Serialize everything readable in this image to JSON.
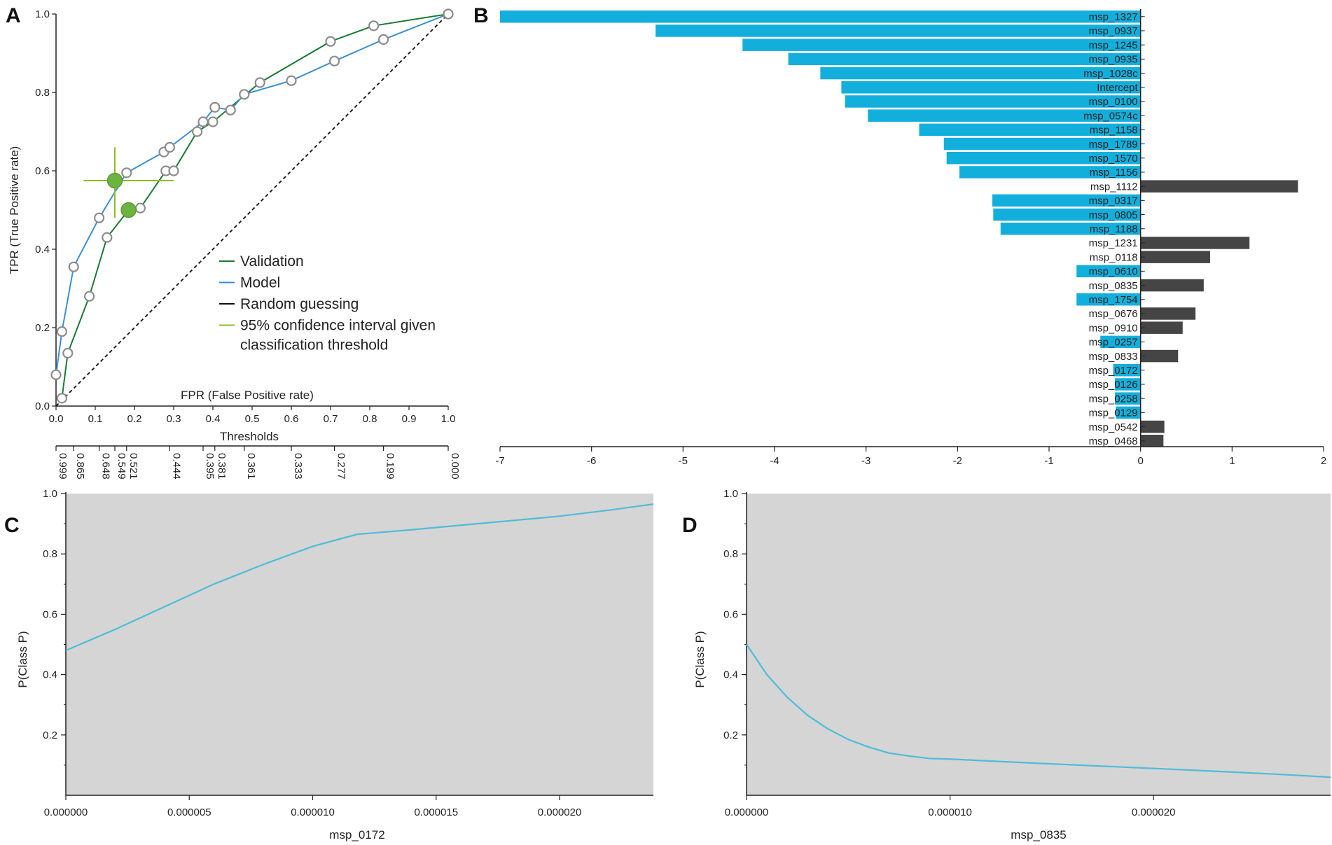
{
  "panels": {
    "A": {
      "letter": "A",
      "chart_data": {
        "type": "line",
        "xlabel": "FPR (False Positive rate)",
        "ylabel": "TPR (True Positive rate)",
        "xlim": [
          0,
          1
        ],
        "ylim": [
          0,
          1
        ],
        "xticks": [
          "0.0",
          "0.1",
          "0.2",
          "0.3",
          "0.4",
          "0.5",
          "0.6",
          "0.7",
          "0.8",
          "0.9",
          "1.0"
        ],
        "yticks": [
          "0.0",
          "0.2",
          "0.4",
          "0.6",
          "0.8",
          "1.0"
        ],
        "series": [
          {
            "name": "Validation",
            "color": "#1a7a35",
            "points": [
              [
                0.015,
                0.02
              ],
              [
                0.03,
                0.135
              ],
              [
                0.085,
                0.28
              ],
              [
                0.13,
                0.43
              ],
              [
                0.185,
                0.5
              ],
              [
                0.215,
                0.505
              ],
              [
                0.28,
                0.6
              ],
              [
                0.3,
                0.6
              ],
              [
                0.36,
                0.7
              ],
              [
                0.4,
                0.725
              ],
              [
                0.52,
                0.825
              ],
              [
                0.7,
                0.93
              ],
              [
                0.81,
                0.97
              ],
              [
                1.0,
                1.0
              ]
            ]
          },
          {
            "name": "Model",
            "color": "#3a8fd4",
            "points": [
              [
                0.0,
                0.08
              ],
              [
                0.015,
                0.19
              ],
              [
                0.045,
                0.355
              ],
              [
                0.11,
                0.48
              ],
              [
                0.18,
                0.595
              ],
              [
                0.275,
                0.648
              ],
              [
                0.29,
                0.66
              ],
              [
                0.375,
                0.725
              ],
              [
                0.405,
                0.762
              ],
              [
                0.445,
                0.755
              ],
              [
                0.48,
                0.795
              ],
              [
                0.6,
                0.83
              ],
              [
                0.71,
                0.88
              ],
              [
                0.835,
                0.935
              ],
              [
                1.0,
                1.0
              ]
            ]
          },
          {
            "name": "Random guessing",
            "color": "#111111",
            "points": [
              [
                0,
                0
              ],
              [
                1,
                1
              ]
            ]
          }
        ],
        "ci_points": [
          {
            "series": "Model",
            "fpr": 0.15,
            "tpr": 0.575,
            "fpr_ci": [
              0.07,
              0.3
            ],
            "tpr_ci": [
              0.48,
              0.66
            ]
          },
          {
            "series": "Validation",
            "fpr": 0.185,
            "tpr": 0.5
          }
        ],
        "legend": [
          {
            "label": "Validation",
            "color": "#1a7a35"
          },
          {
            "label": "Model",
            "color": "#3a8fd4"
          },
          {
            "label": "Random guessing",
            "color": "#111111"
          },
          {
            "label": "95% confidence interval given",
            "label2": "classification threshold",
            "color": "#8cbf26"
          }
        ],
        "thresholds_label": "Thresholds",
        "thresholds": [
          {
            "fpr": 0.0,
            "label": "0.999"
          },
          {
            "fpr": 0.045,
            "label": "0.865"
          },
          {
            "fpr": 0.11,
            "label": "0.648"
          },
          {
            "fpr": 0.15,
            "label": "0.549"
          },
          {
            "fpr": 0.18,
            "label": "0.521"
          },
          {
            "fpr": 0.29,
            "label": "0.444"
          },
          {
            "fpr": 0.375,
            "label": "0.395"
          },
          {
            "fpr": 0.405,
            "label": "0.381"
          },
          {
            "fpr": 0.48,
            "label": "0.361"
          },
          {
            "fpr": 0.6,
            "label": "0.333"
          },
          {
            "fpr": 0.71,
            "label": "0.277"
          },
          {
            "fpr": 0.835,
            "label": "0.199"
          },
          {
            "fpr": 1.0,
            "label": "0.000"
          }
        ]
      }
    },
    "B": {
      "letter": "B",
      "chart_data": {
        "type": "bar",
        "orientation": "horizontal",
        "xlim": [
          -7,
          2
        ],
        "xticks": [
          "-7",
          "-6",
          "-5",
          "-4",
          "-3",
          "-2",
          "-1",
          "0",
          "1",
          "2"
        ],
        "colors": {
          "negative": "#13afdc",
          "positive": "#454545"
        },
        "categories": [
          "msp_1327",
          "msp_0937",
          "msp_1245",
          "msp_0935",
          "msp_1028c",
          "Intercept",
          "msp_0100",
          "msp_0574c",
          "msp_1158",
          "msp_1789",
          "msp_1570",
          "msp_1156",
          "msp_1112",
          "msp_0317",
          "msp_0805",
          "msp_1188",
          "msp_1231",
          "msp_0118",
          "msp_0610",
          "msp_0835",
          "msp_1754",
          "msp_0676",
          "msp_0910",
          "msp_0257",
          "msp_0833",
          "msp_0172",
          "msp_0126",
          "msp_0258",
          "msp_0129",
          "msp_0542",
          "msp_0468"
        ],
        "values": [
          -7.0,
          -5.3,
          -4.35,
          -3.85,
          -3.5,
          -3.27,
          -3.23,
          -2.98,
          -2.42,
          -2.15,
          -2.12,
          -1.98,
          1.72,
          -1.62,
          -1.61,
          -1.53,
          1.19,
          0.76,
          -0.7,
          0.69,
          -0.7,
          0.6,
          0.46,
          -0.44,
          0.41,
          -0.3,
          -0.28,
          -0.28,
          -0.27,
          0.26,
          0.25
        ]
      }
    },
    "C": {
      "letter": "C",
      "chart_data": {
        "type": "line",
        "xlabel": "msp_0172",
        "ylabel": "P(Class P)",
        "xlim": [
          0,
          2.38e-05
        ],
        "ylim": [
          0,
          1.0
        ],
        "xticks": [
          "0.000000",
          "0.000005",
          "0.000010",
          "0.000015",
          "0.000020"
        ],
        "yticks": [
          "0.2",
          "0.4",
          "0.6",
          "0.8",
          "1.0"
        ],
        "color": "#4fbcd8",
        "x": [
          0,
          2e-06,
          4e-06,
          6e-06,
          8e-06,
          1e-05,
          1.18e-05,
          1.4e-05,
          1.6e-05,
          1.8e-05,
          2e-05,
          2.2e-05,
          2.38e-05
        ],
        "y": [
          0.48,
          0.55,
          0.625,
          0.7,
          0.765,
          0.825,
          0.865,
          0.88,
          0.895,
          0.91,
          0.925,
          0.945,
          0.965
        ]
      }
    },
    "D": {
      "letter": "D",
      "chart_data": {
        "type": "line",
        "xlabel": "msp_0835",
        "ylabel": "P(Class P)",
        "xlim": [
          0,
          2.87e-05
        ],
        "ylim": [
          0,
          1.0
        ],
        "xticks": [
          "0.000000",
          "0.000010",
          "0.000020"
        ],
        "yticks": [
          "0.2",
          "0.4",
          "0.6",
          "0.8",
          "1.0"
        ],
        "color": "#4fbcd8",
        "x": [
          0,
          1e-06,
          2e-06,
          3e-06,
          4e-06,
          5e-06,
          6e-06,
          7e-06,
          8e-06,
          9e-06,
          1e-05,
          1.4e-05,
          1.8e-05,
          2.2e-05,
          2.6e-05,
          2.87e-05
        ],
        "y": [
          0.5,
          0.4,
          0.325,
          0.265,
          0.22,
          0.185,
          0.16,
          0.14,
          0.13,
          0.122,
          0.12,
          0.107,
          0.095,
          0.083,
          0.07,
          0.06
        ]
      }
    }
  }
}
